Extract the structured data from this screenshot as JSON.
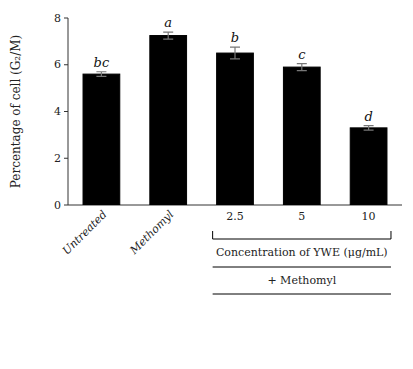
{
  "chart_data": {
    "type": "bar",
    "categories": [
      "Untreated",
      "Methomyl",
      "2.5",
      "5",
      "10"
    ],
    "values": [
      5.6,
      7.25,
      6.5,
      5.9,
      3.3
    ],
    "errors": [
      0.1,
      0.15,
      0.25,
      0.15,
      0.1
    ],
    "letters": [
      "bc",
      "a",
      "b",
      "c",
      "d"
    ],
    "color": "#000000",
    "ylabel": "Percentage of cell (G₂/M)",
    "ylim": [
      0,
      8
    ],
    "yticks": [
      0,
      2,
      4,
      6,
      8
    ],
    "group": {
      "label": "Concentration of YWE (μg/mL)",
      "sublabel": "+ Methomyl",
      "start": 2,
      "end": 4
    },
    "grid": false
  }
}
